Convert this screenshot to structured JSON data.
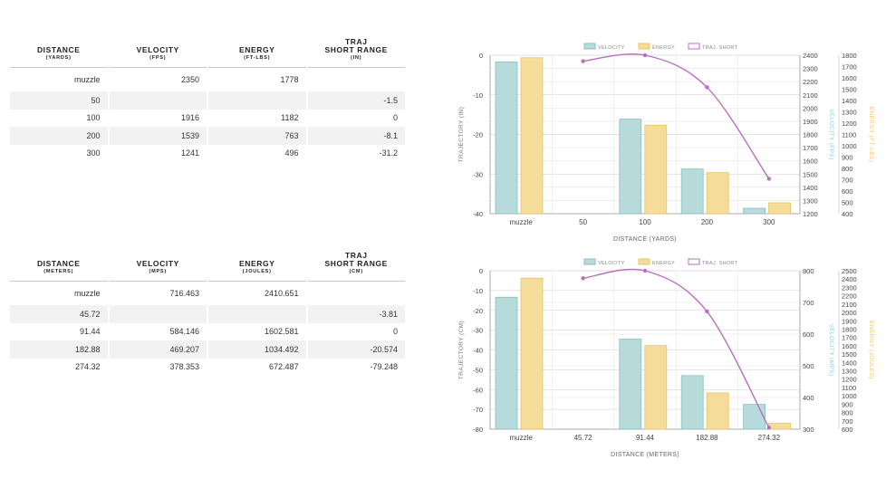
{
  "tables": [
    {
      "columns": [
        {
          "title": "DISTANCE",
          "sub": "(YARDS)"
        },
        {
          "title": "VELOCITY",
          "sub": "(FPS)"
        },
        {
          "title": "ENERGY",
          "sub": "(FT-LBS)"
        },
        {
          "title": "TRAJ\nSHORT RANGE",
          "sub": "(IN)"
        }
      ],
      "rows": [
        [
          "muzzle",
          "2350",
          "1778",
          ""
        ],
        [
          "50",
          "",
          "",
          "-1.5"
        ],
        [
          "100",
          "1916",
          "1182",
          "0"
        ],
        [
          "200",
          "1539",
          "763",
          "-8.1"
        ],
        [
          "300",
          "1241",
          "496",
          "-31.2"
        ]
      ]
    },
    {
      "columns": [
        {
          "title": "DISTANCE",
          "sub": "(METERS)"
        },
        {
          "title": "VELOCITY",
          "sub": "(MPS)"
        },
        {
          "title": "ENERGY",
          "sub": "(JOULES)"
        },
        {
          "title": "TRAJ\nSHORT RANGE",
          "sub": "(CM)"
        }
      ],
      "rows": [
        [
          "muzzle",
          "716.463",
          "2410.651",
          ""
        ],
        [
          "45.72",
          "",
          "",
          "-3.81"
        ],
        [
          "91.44",
          "584.146",
          "1602.581",
          "0"
        ],
        [
          "182.88",
          "469.207",
          "1034.492",
          "-20.574"
        ],
        [
          "274.32",
          "378.353",
          "672.487",
          "-79.248"
        ]
      ]
    }
  ],
  "colors": {
    "velocity_fill": "#b7dadb",
    "velocity_stroke": "#88c2c4",
    "energy_fill": "#f5dc9a",
    "energy_stroke": "#e8c463",
    "traj": "#b86fc0",
    "velocity_axis": "#8ecfd1",
    "energy_axis": "#efc76a"
  },
  "chart_data": [
    {
      "type": "bar",
      "categories": [
        "muzzle",
        "50",
        "100",
        "200",
        "300"
      ],
      "legend": [
        "VELOCITY",
        "ENERGY",
        "TRAJ. SHORT"
      ],
      "xlabel": "DISTANCE (YARDS)",
      "series": [
        {
          "name": "VELOCITY",
          "type": "bar",
          "axis": "y2",
          "values": [
            2350,
            null,
            1916,
            1539,
            1241
          ]
        },
        {
          "name": "ENERGY",
          "type": "bar",
          "axis": "y3",
          "values": [
            1778,
            null,
            1182,
            763,
            496
          ]
        },
        {
          "name": "TRAJ. SHORT",
          "type": "line",
          "axis": "y1",
          "values": [
            null,
            -1.5,
            0,
            -8.1,
            -31.2
          ]
        }
      ],
      "y1": {
        "label": "TRAJECTORY (IN)",
        "min": -40,
        "max": 0,
        "ticks": [
          0,
          -10,
          -20,
          -30,
          -40
        ]
      },
      "y2": {
        "label": "VELOCITY (FPS)",
        "min": 1200,
        "max": 2400,
        "ticks": [
          2400,
          2300,
          2200,
          2100,
          2000,
          1900,
          1800,
          1700,
          1600,
          1500,
          1400,
          1300,
          1200
        ]
      },
      "y3": {
        "label": "ENERGY (FT-LBS)",
        "min": 400,
        "max": 1800,
        "ticks": [
          1800,
          1700,
          1600,
          1500,
          1400,
          1300,
          1200,
          1100,
          1000,
          900,
          800,
          700,
          600,
          500,
          400
        ]
      }
    },
    {
      "type": "bar",
      "categories": [
        "muzzle",
        "45.72",
        "91.44",
        "182.88",
        "274.32"
      ],
      "legend": [
        "VELOCITY",
        "ENERGY",
        "TRAJ. SHORT"
      ],
      "xlabel": "DISTANCE (METERS)",
      "series": [
        {
          "name": "VELOCITY",
          "type": "bar",
          "axis": "y2",
          "values": [
            716.463,
            null,
            584.146,
            469.207,
            378.353
          ]
        },
        {
          "name": "ENERGY",
          "type": "bar",
          "axis": "y3",
          "values": [
            2410.651,
            null,
            1602.581,
            1034.492,
            672.487
          ]
        },
        {
          "name": "TRAJ. SHORT",
          "type": "line",
          "axis": "y1",
          "values": [
            null,
            -3.81,
            0,
            -20.574,
            -79.248
          ]
        }
      ],
      "y1": {
        "label": "TRAJECTORY (CM)",
        "min": -80,
        "max": 0,
        "ticks": [
          0,
          -10,
          -20,
          -30,
          -40,
          -50,
          -60,
          -70,
          -80
        ]
      },
      "y2": {
        "label": "VELOCITY (MPS)",
        "min": 300,
        "max": 800,
        "ticks": [
          800,
          700,
          600,
          500,
          400,
          300
        ]
      },
      "y3": {
        "label": "ENERGY (JOULES)",
        "min": 600,
        "max": 2500,
        "ticks": [
          2500,
          2400,
          2300,
          2200,
          2100,
          2000,
          1900,
          1800,
          1700,
          1600,
          1500,
          1400,
          1300,
          1200,
          1100,
          1000,
          900,
          800,
          700,
          600
        ]
      }
    }
  ]
}
